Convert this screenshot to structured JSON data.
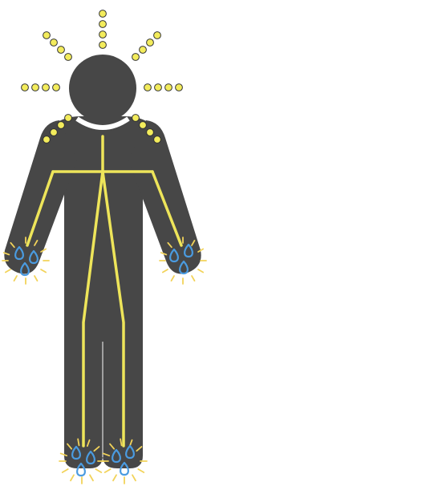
{
  "figure": {
    "subject": "human-figure",
    "description_icons": [
      "head-radiance-icon",
      "shoulder-dots-icon",
      "nerve-lines-icon",
      "sweat-drops-icon",
      "heat-sparks-icon"
    ]
  },
  "colors": {
    "background": "#ffffff",
    "body": "#474747",
    "neck_gap": "#ffffff",
    "radiance_dot_fill": "#f3ec5c",
    "radiance_dot_stroke": "#333333",
    "nerve_line": "#eee55a",
    "drop_stroke": "#4a9be0",
    "spark": "#f2d35a",
    "leg_divider": "#bdbdbd"
  }
}
